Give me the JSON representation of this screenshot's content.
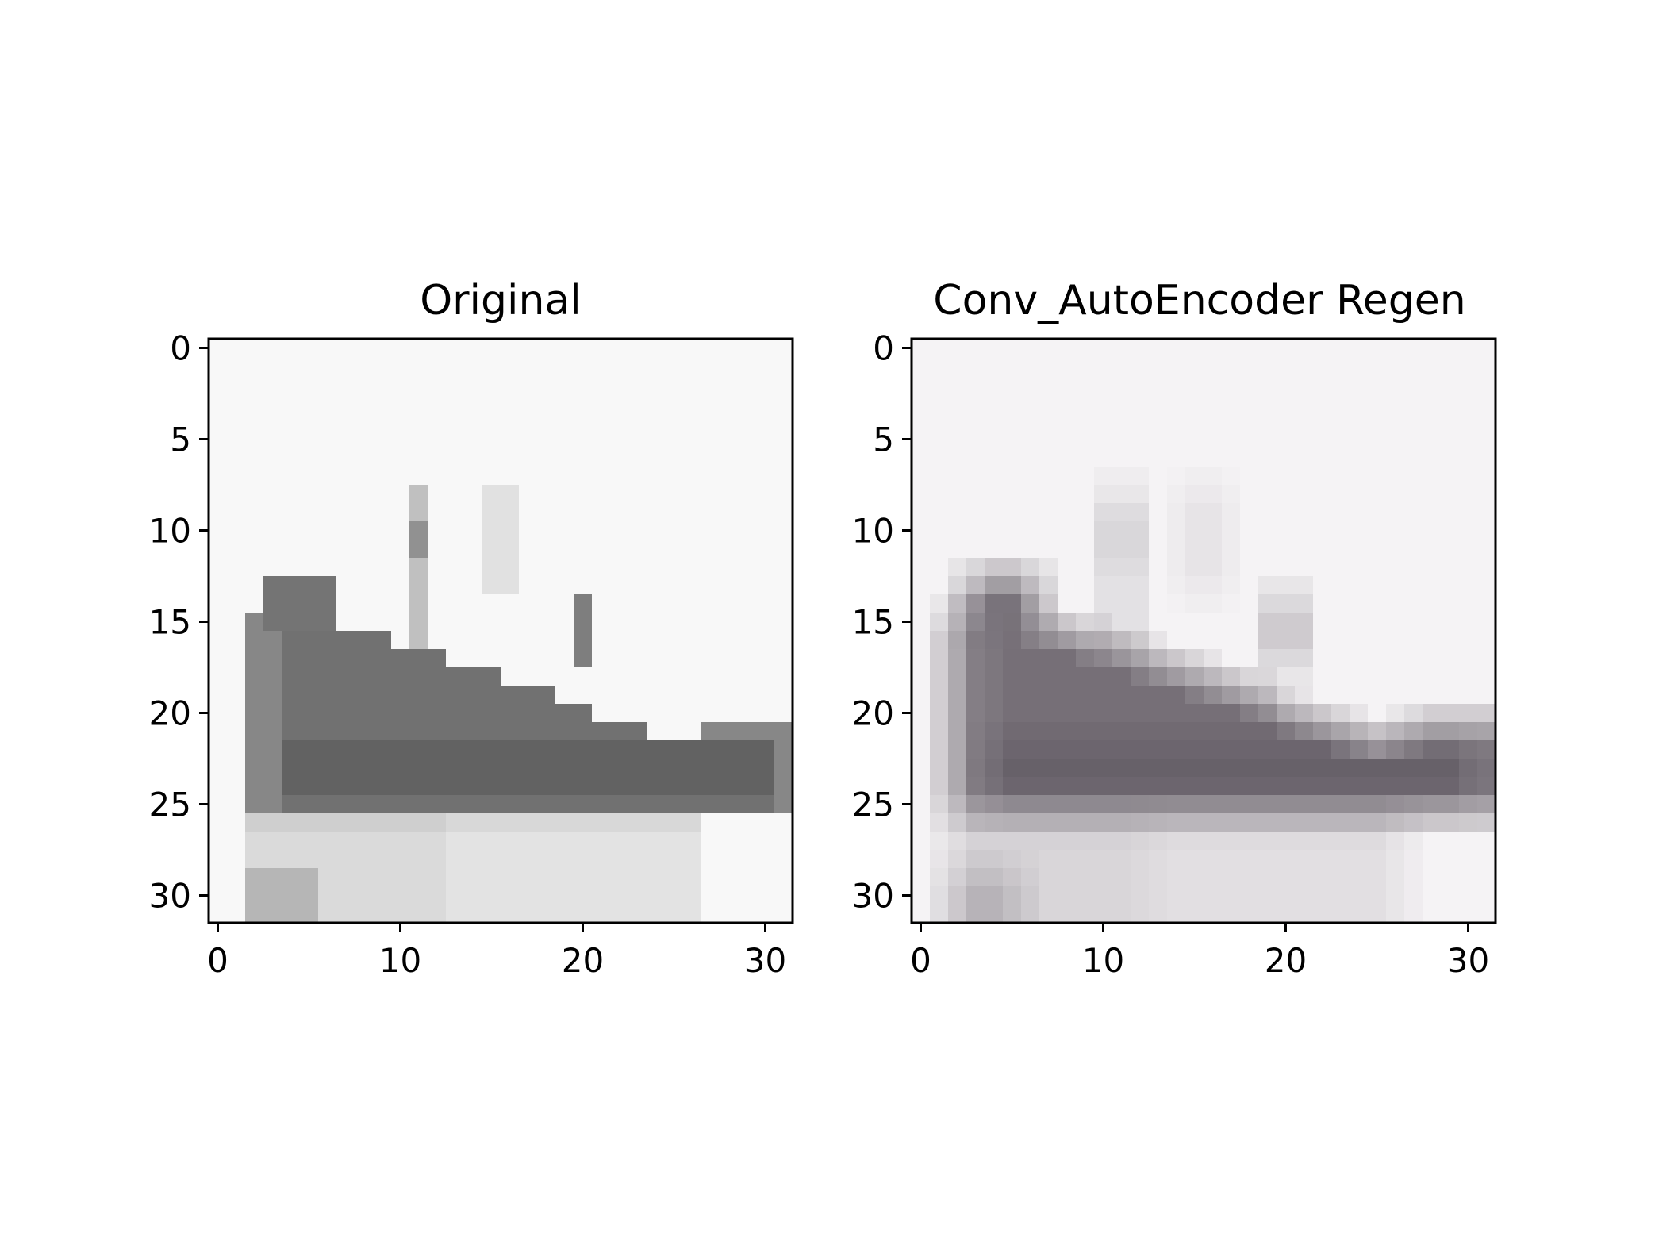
{
  "chart_data": [
    {
      "type": "heatmap",
      "title": "Original",
      "xlim": [
        -0.5,
        31.5
      ],
      "ylim": [
        31.5,
        -0.5
      ],
      "xticks": [
        0,
        10,
        20,
        30
      ],
      "yticks": [
        0,
        5,
        10,
        15,
        20,
        25,
        30
      ],
      "xtick_labels": [
        "0",
        "10",
        "20",
        "30"
      ],
      "ytick_labels": [
        "0",
        "5",
        "10",
        "15",
        "20",
        "25",
        "30"
      ],
      "colormap": "grayscale",
      "image": {
        "width": 32,
        "height": 32,
        "background": [
          248,
          248,
          248
        ],
        "shape": "sneaker",
        "tint": [
          0,
          0,
          0
        ],
        "blur": 0
      }
    },
    {
      "type": "heatmap",
      "title": "Conv_AutoEncoder Regen",
      "xlim": [
        -0.5,
        31.5
      ],
      "ylim": [
        31.5,
        -0.5
      ],
      "xticks": [
        0,
        10,
        20,
        30
      ],
      "yticks": [
        0,
        5,
        10,
        15,
        20,
        25,
        30
      ],
      "xtick_labels": [
        "0",
        "10",
        "20",
        "30"
      ],
      "ytick_labels": [
        "0",
        "5",
        "10",
        "15",
        "20",
        "25",
        "30"
      ],
      "colormap": "rgb",
      "image": {
        "width": 32,
        "height": 32,
        "background": [
          245,
          243,
          245
        ],
        "shape": "sneaker",
        "tint": [
          8,
          0,
          10
        ],
        "blur": 1
      }
    }
  ]
}
